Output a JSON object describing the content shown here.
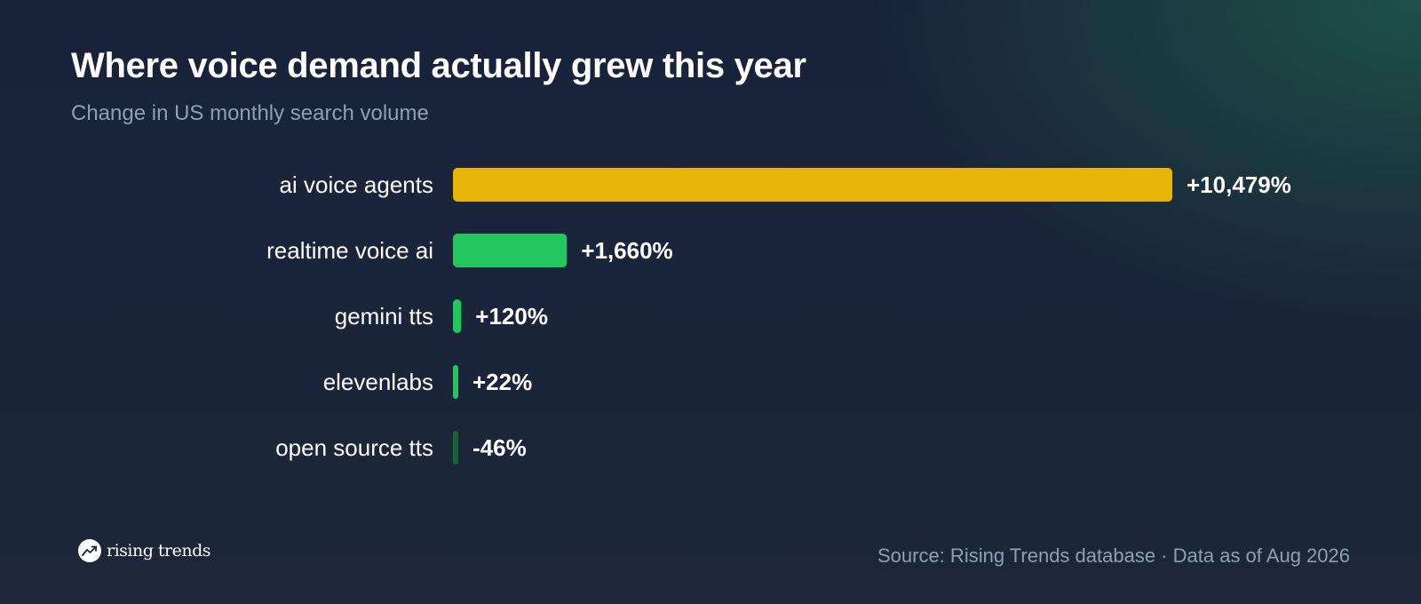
{
  "header": {
    "title": "Where voice demand actually grew this year",
    "subtitle": "Change in US monthly search volume"
  },
  "chart_data": {
    "type": "bar",
    "orientation": "horizontal",
    "title": "Where voice demand actually grew this year",
    "subtitle": "Change in US monthly search volume",
    "categories": [
      "ai voice agents",
      "realtime voice ai",
      "gemini tts",
      "elevenlabs",
      "open source tts"
    ],
    "values": [
      10479,
      1660,
      120,
      22,
      -46
    ],
    "value_labels": [
      "+10,479%",
      "+1,660%",
      "+120%",
      "+22%",
      "-46%"
    ],
    "colors": [
      "#eab308",
      "#22c55e",
      "#22c55e",
      "#22c55e",
      "#166534"
    ],
    "unit": "%",
    "grid": false,
    "legend": "none"
  },
  "footer": {
    "brand": "rising trends",
    "brand_icon": "trending-up-icon",
    "source": "Source: Rising Trends database · Data as of Aug 2026"
  }
}
